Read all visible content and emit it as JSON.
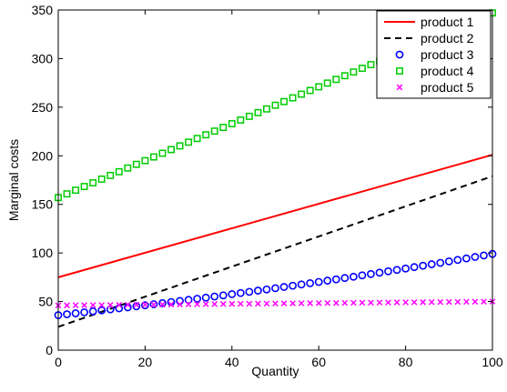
{
  "chart_data": {
    "type": "line",
    "title": "",
    "xlabel": "Quantity",
    "ylabel": "Marginal costs",
    "xlim": [
      0,
      100
    ],
    "ylim": [
      0,
      350
    ],
    "xticks": [
      0,
      20,
      40,
      60,
      80,
      100
    ],
    "yticks": [
      0,
      50,
      100,
      150,
      200,
      250,
      300,
      350
    ],
    "grid": false,
    "legend_position": "top-right",
    "series": [
      {
        "name": "product 1",
        "style": "solid-line",
        "color": "#ff0000",
        "x": [
          0,
          100
        ],
        "y": [
          75,
          201
        ]
      },
      {
        "name": "product 2",
        "style": "dashed-line",
        "color": "#000000",
        "x": [
          0,
          100
        ],
        "y": [
          24,
          179
        ]
      },
      {
        "name": "product 3",
        "style": "circle-markers",
        "color": "#0000ff",
        "x_start": 0,
        "x_end": 100,
        "x_step": 2,
        "y_start": 36,
        "y_end": 99,
        "curvature": 0.0015
      },
      {
        "name": "product 4",
        "style": "square-markers",
        "color": "#00cc00",
        "x_start": 0,
        "x_end": 100,
        "x_step": 2,
        "y_start": 157,
        "y_end": 347
      },
      {
        "name": "product 5",
        "style": "x-markers",
        "color": "#ff00ff",
        "x_start": 0,
        "x_end": 100,
        "x_step": 2,
        "y_start": 46,
        "y_end": 50
      }
    ]
  }
}
